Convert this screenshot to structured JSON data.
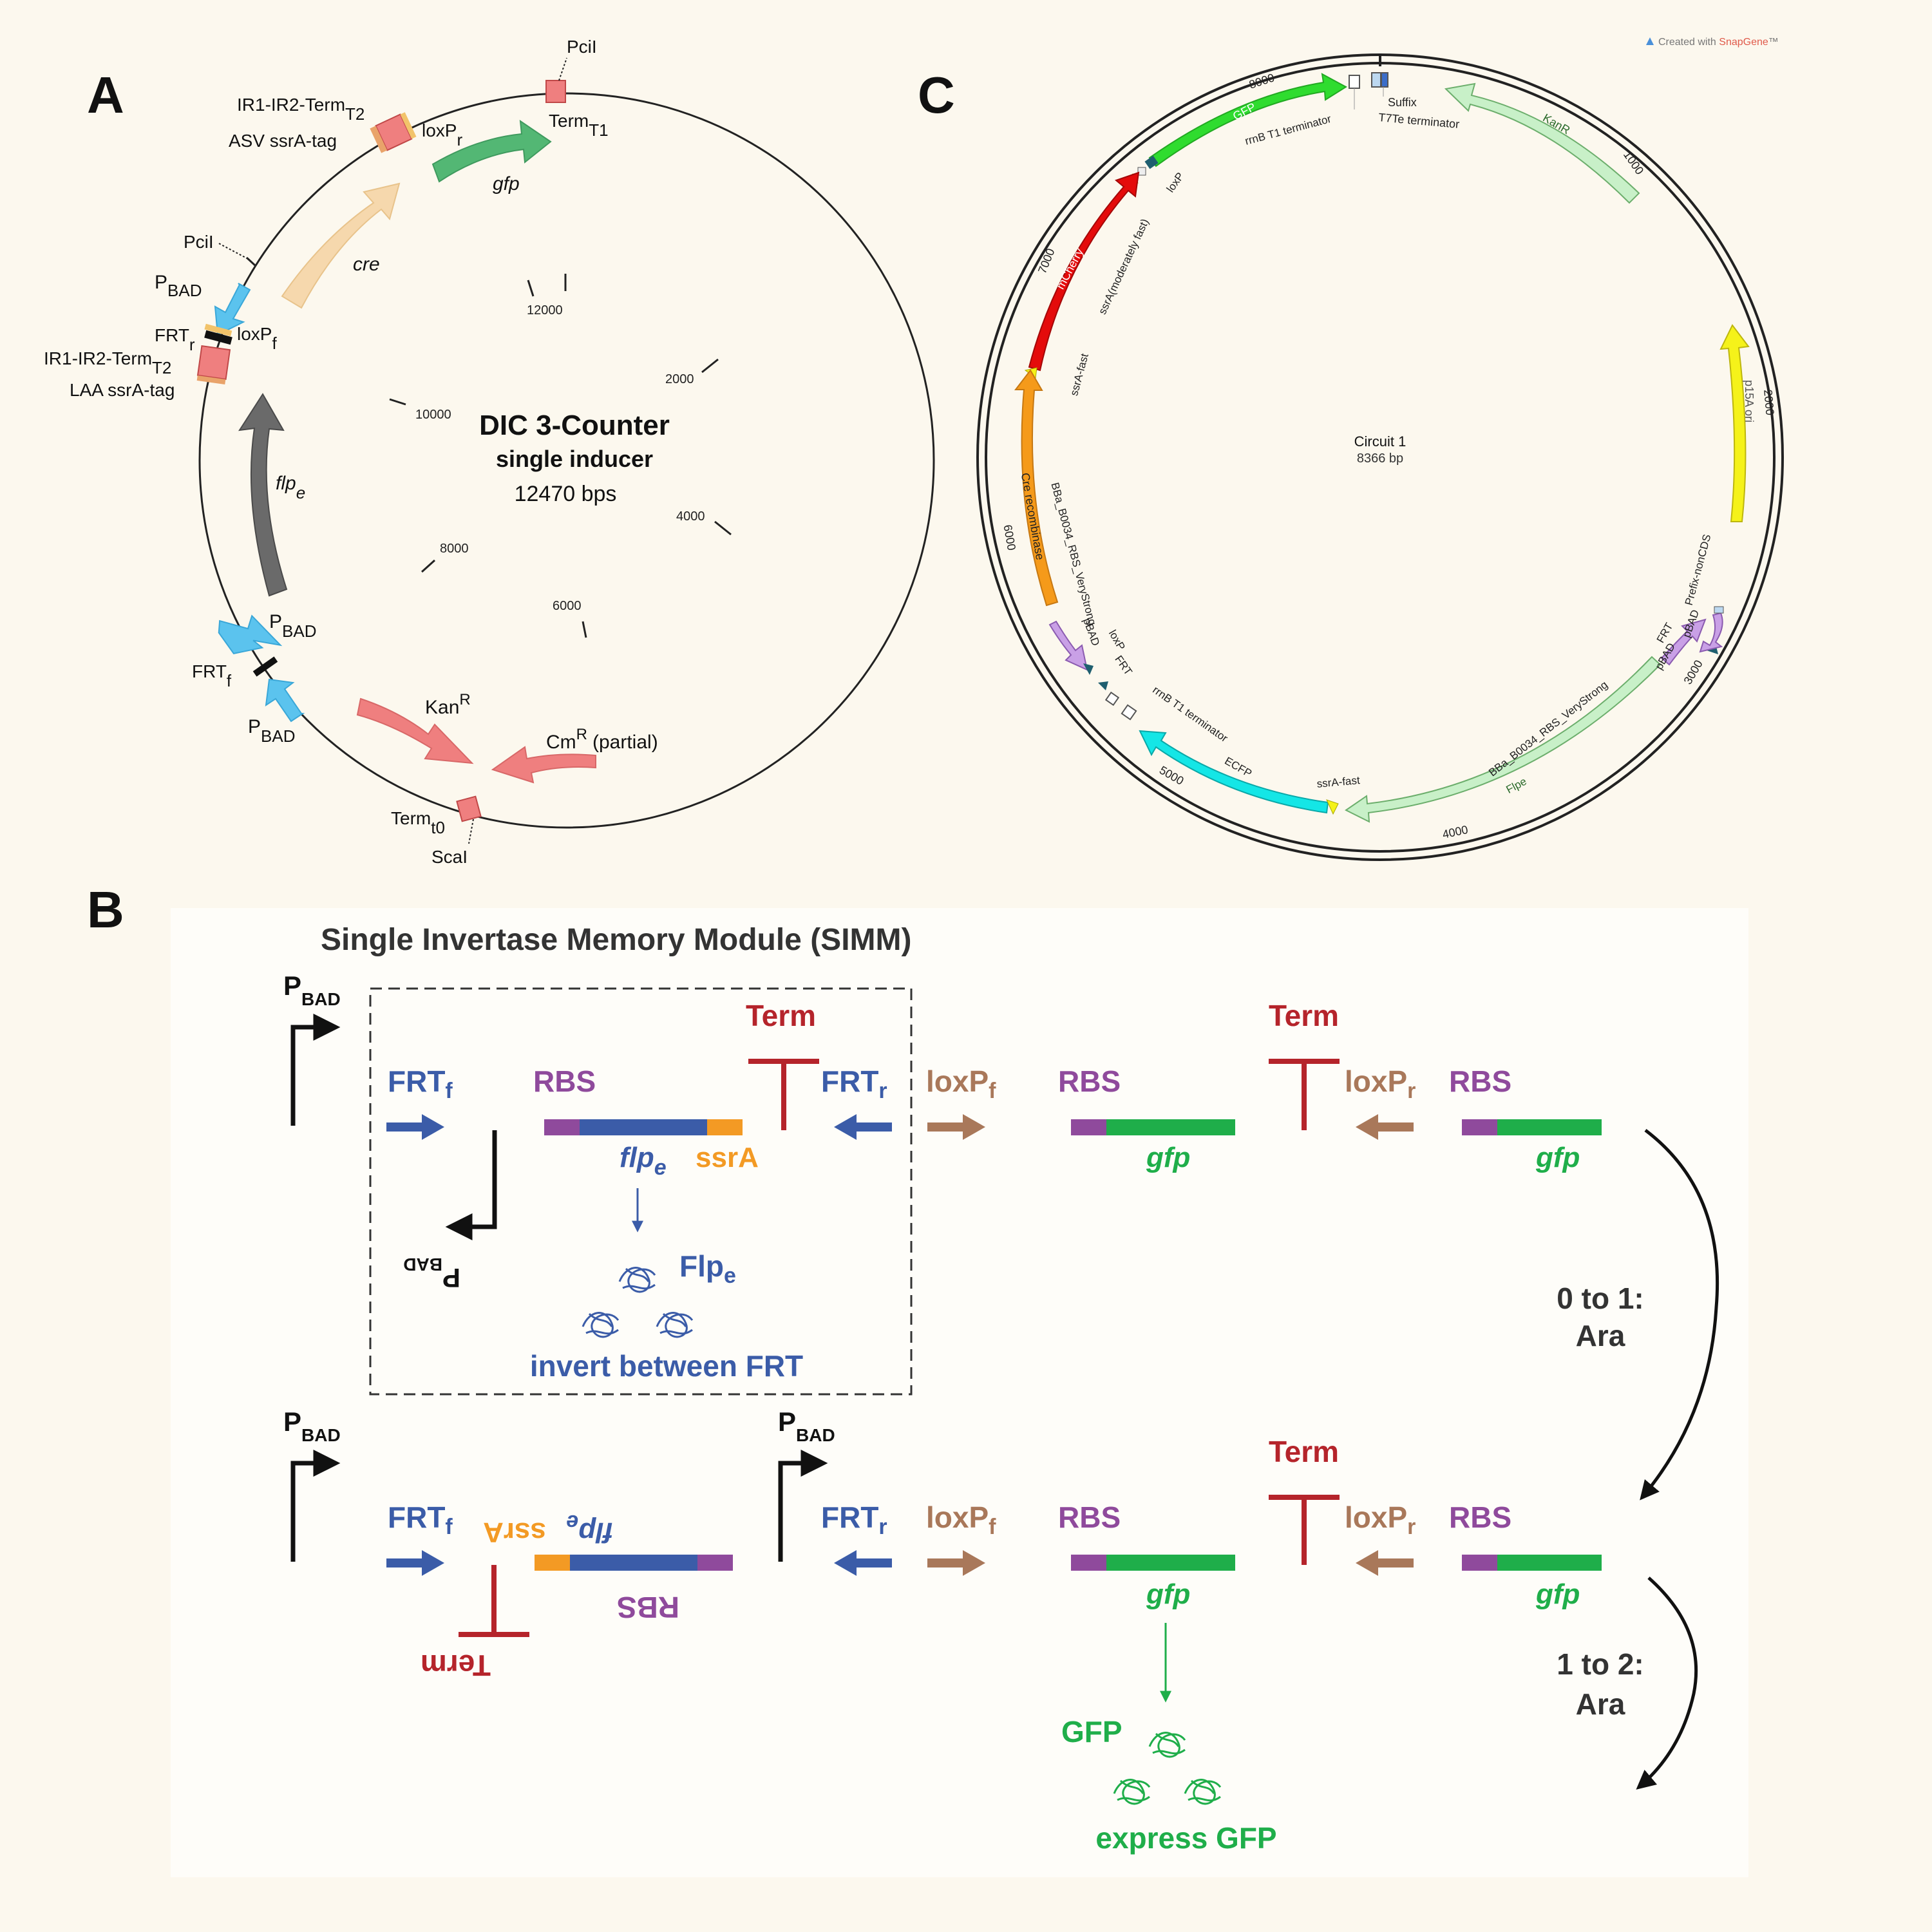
{
  "colors": {
    "background": "#fcf8ee",
    "panel_b_bg": "#fefdf9",
    "blue": "#3b5ca8",
    "purple": "#8f4a9c",
    "red": "#b5242b",
    "orange": "#f39a24",
    "brown": "#a9785a",
    "green": "#1fae4a",
    "cyan_arrow": "#5bc3ee",
    "pink_box": "#ef7f7f",
    "cre_arrow": "#f6d8ad",
    "gfp_arrow": "#53b774",
    "flp_arrow": "#6a6a6a"
  },
  "panel_a": {
    "letter": "A",
    "title": "DIC 3-Counter",
    "subtitle": "single inducer",
    "size": "12470 bps",
    "ticks": [
      "2000",
      "4000",
      "6000",
      "8000",
      "10000",
      "12000"
    ],
    "labels": {
      "pcil_top": "PciI",
      "term_t1": "Term",
      "term_t1_sub": "T1",
      "gfp": "gfp",
      "ir_top": "IR1-IR2-Term",
      "ir_top_sub": "T2",
      "loxpr": "loxP",
      "loxpr_sub": "r",
      "asv": "ASV ssrA-tag",
      "cre": "cre",
      "pcil_left": "PciI",
      "pbad1": "P",
      "pbad1_sub": "BAD",
      "frtr": "FRT",
      "frtr_sub": "r",
      "loxpf": "loxP",
      "loxpf_sub": "f",
      "ir_mid": "IR1-IR2-Term",
      "ir_mid_sub": "T2",
      "laa": "LAA ssrA-tag",
      "flpe": "flp",
      "flpe_sub": "e",
      "pbad2": "P",
      "pbad2_sub": "BAD",
      "frtf": "FRT",
      "frtf_sub": "f",
      "pbad3": "P",
      "pbad3_sub": "BAD",
      "kanr": "Kan",
      "kanr_sup": "R",
      "cmr": "Cm",
      "cmr_sup": "R",
      "cmr_partial": "(partial)",
      "term_t0": "Term",
      "term_t0_sub": "t0",
      "scai": "ScaI"
    }
  },
  "panel_c": {
    "letter": "C",
    "name": "Circuit 1",
    "size": "8366 bp",
    "credit_prefix": "Created with ",
    "credit_brand": "SnapGene",
    "credit_tm": "™",
    "ticks": [
      "1000",
      "2000",
      "3000",
      "4000",
      "5000",
      "6000",
      "7000",
      "8000"
    ],
    "features": {
      "kanr": "KanR",
      "p15a": "p15A ori",
      "gfp": "GFP",
      "mcherry": "mCherry",
      "cre": "Cre recombinase",
      "ecfp": "ECFP",
      "flpe": "Flpe"
    },
    "labels": {
      "suffix": "Suffix",
      "t7te": "T7Te terminator",
      "rrnb_top": "rrnB T1 terminator",
      "loxp_top": "loxP",
      "ssra_mod": "ssrA(moderately fast)",
      "ssra_fast_left": "ssrA-fast",
      "bba_left": "BBa_B0034_RBS_VeryStrong",
      "pbad_left": "pBAD",
      "loxp_left": "loxP",
      "frt_left": "FRT",
      "rrnb_bottom": "rrnB T1 terminator",
      "ssra_fast_bottom": "ssrA-fast",
      "bba_right": "BBa_B0034_RBS_VeryStrong",
      "pbad_right": "pBAD",
      "frt_right": "FRT",
      "pbad_right2": "pBAD",
      "prefix": "Prefix-nonCDS"
    }
  },
  "panel_b": {
    "letter": "B",
    "title": "Single Invertase Memory Module (SIMM)",
    "row1": {
      "pbad": "P",
      "pbad_sub": "BAD",
      "frtf": "FRT",
      "frtf_sub": "f",
      "rbs1": "RBS",
      "term1": "Term",
      "frtr": "FRT",
      "frtr_sub": "r",
      "loxpf": "loxP",
      "loxpf_sub": "f",
      "rbs2": "RBS",
      "term2": "Term",
      "loxpr": "loxP",
      "loxpr_sub": "r",
      "rbs3": "RBS",
      "flpe": "flp",
      "flpe_sub": "e",
      "ssra": "ssrA",
      "gfp1": "gfp",
      "gfp2": "gfp",
      "pbad_inv": "P",
      "pbad_inv_sub": "BAD",
      "protein": "Flp",
      "protein_sub": "e",
      "action": "invert between FRT"
    },
    "transition1": "0 to 1:",
    "transition1_b": "Ara",
    "row2": {
      "pbad1": "P",
      "pbad1_sub": "BAD",
      "pbad2": "P",
      "pbad2_sub": "BAD",
      "frtf": "FRT",
      "frtf_sub": "f",
      "flpe": "flp",
      "flpe_sub": "e",
      "ssra": "ssrA",
      "rbs_inv": "RBS",
      "term_inv": "Term",
      "frtr": "FRT",
      "frtr_sub": "r",
      "loxpf": "loxP",
      "loxpf_sub": "f",
      "rbs2": "RBS",
      "term2": "Term",
      "loxpr": "loxP",
      "loxpr_sub": "r",
      "rbs3": "RBS",
      "gfp1": "gfp",
      "gfp2": "gfp",
      "protein": "GFP",
      "action": "express GFP"
    },
    "transition2": "1 to 2:",
    "transition2_b": "Ara"
  }
}
